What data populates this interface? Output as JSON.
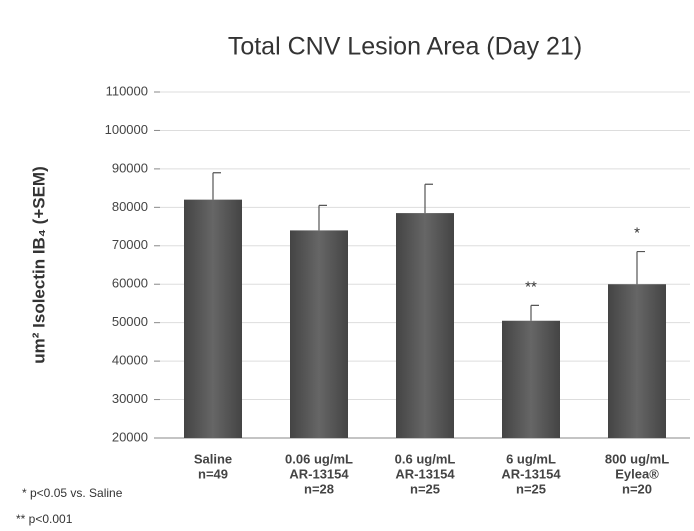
{
  "chart_data": {
    "type": "bar",
    "title": "Total CNV Lesion Area (Day 21)",
    "y_label": "um² Isolectin IB₄ (+SEM)",
    "categories": [
      [
        "Saline",
        "n=49"
      ],
      [
        "0.06 ug/mL",
        "AR-13154",
        "n=28"
      ],
      [
        "0.6 ug/mL",
        "AR-13154",
        "n=25"
      ],
      [
        "6 ug/mL",
        "AR-13154",
        "n=25"
      ],
      [
        "800 ug/mL",
        "Eylea®",
        "n=20"
      ]
    ],
    "values": [
      82000,
      74000,
      78500,
      50500,
      60000
    ],
    "errors": [
      7000,
      6500,
      7500,
      4000,
      8500
    ],
    "color": "#595959",
    "ylim": [
      20000,
      110000
    ],
    "yticks": [
      20000,
      30000,
      40000,
      50000,
      60000,
      70000,
      80000,
      90000,
      100000,
      110000
    ],
    "grid": true,
    "annotations": [
      {
        "text": "**",
        "category": 3
      },
      {
        "text": "*",
        "category": 4
      }
    ],
    "footnotes": [
      "* p<0.05 vs. Saline",
      "** p<0.001"
    ]
  }
}
